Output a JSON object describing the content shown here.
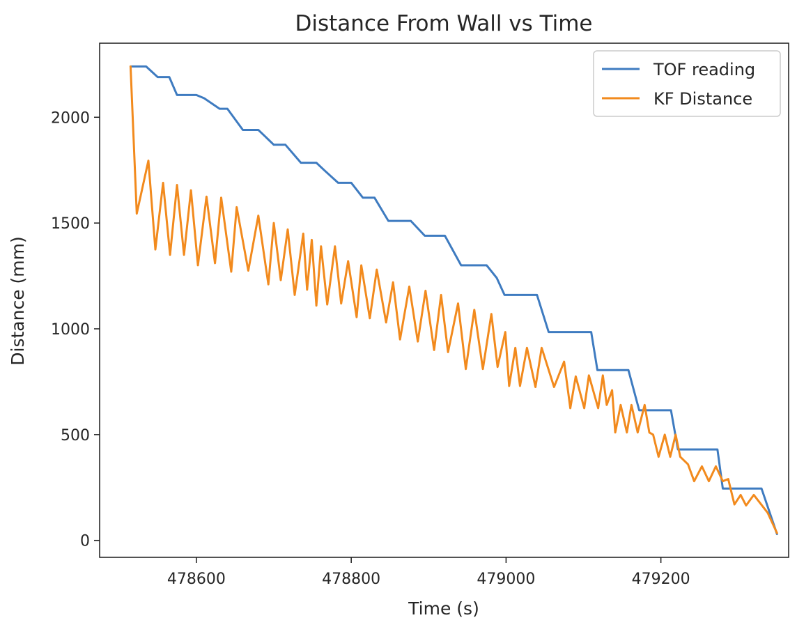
{
  "chart_data": {
    "type": "line",
    "title": "Distance From Wall vs Time",
    "xlabel": "Time (s)",
    "ylabel": "Distance (mm)",
    "xlim": [
      478475,
      479365
    ],
    "ylim": [
      -80,
      2350
    ],
    "xticks": [
      478600,
      478800,
      479000,
      479200
    ],
    "xtick_labels": [
      "478600",
      "478800",
      "479000",
      "479200"
    ],
    "yticks": [
      0,
      500,
      1000,
      1500,
      2000
    ],
    "ytick_labels": [
      "0",
      "500",
      "1000",
      "1500",
      "2000"
    ],
    "grid": false,
    "legend_position": "top-right",
    "series": [
      {
        "name": "TOF reading",
        "color": "#3e7bc0",
        "x": [
          478515,
          478535,
          478550,
          478565,
          478575,
          478600,
          478610,
          478630,
          478640,
          478660,
          478680,
          478690,
          478700,
          478715,
          478735,
          478755,
          478765,
          478783,
          478800,
          478815,
          478830,
          478848,
          478865,
          478877,
          478895,
          478921,
          478942,
          478957,
          478975,
          478988,
          478998,
          479012,
          479040,
          479055,
          479073,
          479093,
          479110,
          479118,
          479135,
          479158,
          479172,
          479190,
          479213,
          479222,
          479245,
          479273,
          479280,
          479310,
          479330,
          479350
        ],
        "y": [
          2240,
          2240,
          2190,
          2190,
          2105,
          2105,
          2090,
          2040,
          2040,
          1940,
          1940,
          1905,
          1870,
          1870,
          1785,
          1785,
          1750,
          1690,
          1690,
          1620,
          1620,
          1510,
          1510,
          1510,
          1440,
          1440,
          1300,
          1300,
          1300,
          1240,
          1160,
          1160,
          1160,
          985,
          985,
          985,
          985,
          805,
          805,
          805,
          615,
          615,
          615,
          430,
          430,
          430,
          245,
          245,
          245,
          30
        ]
      },
      {
        "name": "KF Distance",
        "color": "#f28a1d",
        "x": [
          478515,
          478523,
          478538,
          478547,
          478557,
          478566,
          478575,
          478584,
          478593,
          478602,
          478613,
          478624,
          478632,
          478645,
          478652,
          478667,
          478680,
          478693,
          478700,
          478709,
          478718,
          478727,
          478738,
          478743,
          478749,
          478755,
          478761,
          478769,
          478779,
          478787,
          478796,
          478807,
          478813,
          478824,
          478833,
          478845,
          478854,
          478863,
          478875,
          478886,
          478896,
          478907,
          478916,
          478925,
          478938,
          478948,
          478959,
          478970,
          478981,
          478989,
          478999,
          479004,
          479012,
          479018,
          479027,
          479038,
          479046,
          479062,
          479075,
          479083,
          479090,
          479101,
          479107,
          479119,
          479125,
          479130,
          479137,
          479141,
          479148,
          479156,
          479162,
          479170,
          479179,
          479185,
          479190,
          479197,
          479205,
          479212,
          479219,
          479225,
          479235,
          479243,
          479253,
          479262,
          479271,
          479280,
          479287,
          479295,
          479303,
          479310,
          479320,
          479338,
          479350
        ],
        "y": [
          2240,
          1545,
          1795,
          1375,
          1690,
          1350,
          1680,
          1350,
          1655,
          1300,
          1625,
          1310,
          1620,
          1270,
          1575,
          1275,
          1535,
          1210,
          1500,
          1230,
          1470,
          1160,
          1450,
          1185,
          1420,
          1110,
          1390,
          1115,
          1390,
          1120,
          1320,
          1055,
          1300,
          1050,
          1280,
          1030,
          1220,
          950,
          1200,
          940,
          1180,
          900,
          1160,
          890,
          1120,
          810,
          1090,
          810,
          1070,
          820,
          985,
          730,
          910,
          730,
          910,
          725,
          910,
          725,
          845,
          625,
          775,
          625,
          780,
          625,
          780,
          640,
          710,
          510,
          640,
          510,
          640,
          510,
          640,
          510,
          500,
          395,
          500,
          395,
          500,
          395,
          360,
          280,
          350,
          280,
          350,
          280,
          290,
          170,
          215,
          165,
          215,
          130,
          35
        ]
      }
    ]
  }
}
